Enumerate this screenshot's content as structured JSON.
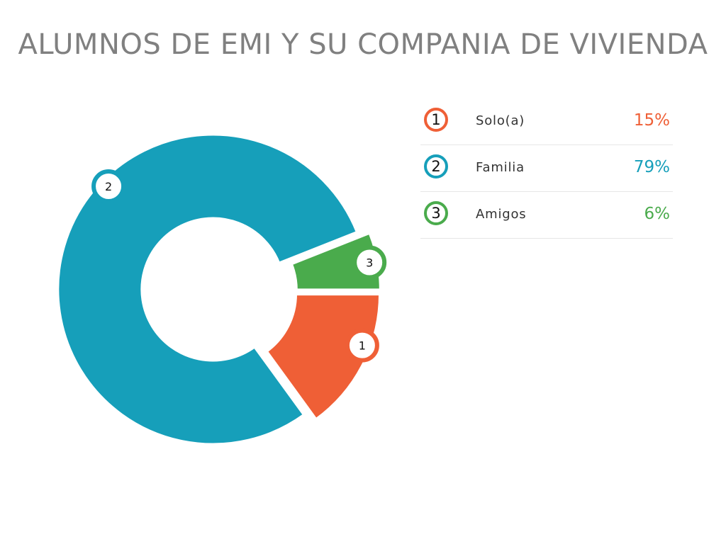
{
  "chart_data": {
    "type": "pie",
    "title": "ALUMNOS DE EMI Y SU COMPANIA DE VIVIENDA",
    "donut": true,
    "slices": [
      {
        "number": "1",
        "label": "Solo(a)",
        "value": 15,
        "value_label": "15%",
        "color": "#ef5f36"
      },
      {
        "number": "2",
        "label": "Familia",
        "value": 79,
        "value_label": "79%",
        "color": "#169fba"
      },
      {
        "number": "3",
        "label": "Amigos",
        "value": 6,
        "value_label": "6%",
        "color": "#4aab4c"
      }
    ],
    "legend_placement": "right"
  }
}
